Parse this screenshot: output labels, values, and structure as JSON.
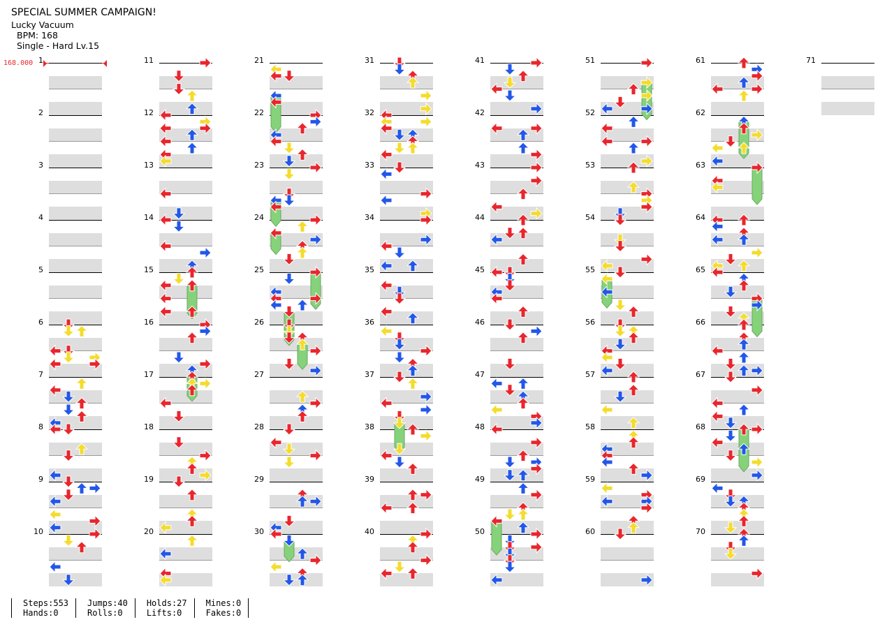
{
  "header": {
    "title": "SPECIAL SUMMER CAMPAIGN!",
    "song": "Lucky Vacuum",
    "bpm_text": "BPM: 168",
    "difficulty": "Single - Hard  Lv.15"
  },
  "bpm_marker": "168.000",
  "measure_numbers": [
    "1",
    "2",
    "3",
    "4",
    "5",
    "6",
    "7",
    "8",
    "9",
    "10",
    "11",
    "12",
    "13",
    "14",
    "15",
    "16",
    "17",
    "18",
    "19",
    "20",
    "21",
    "22",
    "23",
    "24",
    "25",
    "26",
    "27",
    "28",
    "29",
    "30",
    "31",
    "32",
    "33",
    "34",
    "35",
    "36",
    "37",
    "38",
    "39",
    "40",
    "41",
    "42",
    "43",
    "44",
    "45",
    "46",
    "47",
    "48",
    "49",
    "50",
    "51",
    "52",
    "53",
    "54",
    "55",
    "56",
    "57",
    "58",
    "59",
    "60",
    "61",
    "62",
    "63",
    "64",
    "65",
    "66",
    "67",
    "68",
    "69",
    "70",
    "71"
  ],
  "stats": [
    [
      "Steps:553",
      "Hands:0"
    ],
    [
      "Jumps:40",
      "Rolls:0"
    ],
    [
      "Holds:27",
      "Lifts:0"
    ],
    [
      "Mines:0",
      "Fakes:0"
    ]
  ],
  "colors": {
    "quarter": "#e8262d",
    "eighth": "#2357e8",
    "sixteenth": "#f4dc2c",
    "hold": "#86d27a",
    "band": "#dedede"
  },
  "icons": [
    "left-arrow-icon",
    "down-arrow-icon",
    "up-arrow-icon",
    "right-arrow-icon",
    "hold-icon"
  ]
}
